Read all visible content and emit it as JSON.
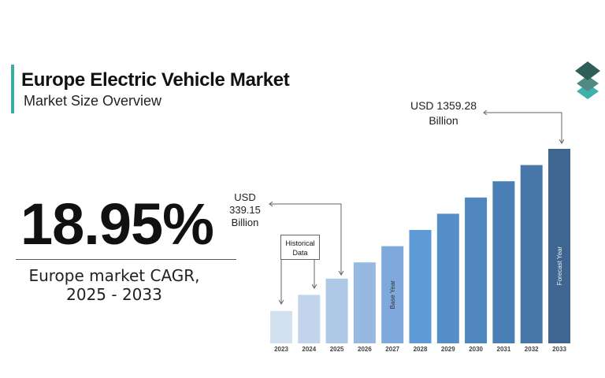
{
  "header": {
    "title": "Europe Electric Vehicle Market",
    "subtitle": "Market Size Overview"
  },
  "logo": {
    "icon": "stacked-layers-logo-icon",
    "colors": [
      "#2f5f5a",
      "#4f8a85",
      "#3fb0aa"
    ]
  },
  "cagr": {
    "value": "18.95%",
    "label_line1": "Europe market CAGR,",
    "label_line2": "2025 - 2033"
  },
  "annotations": {
    "value_2025_line1": "USD",
    "value_2025_line2": "339.15",
    "value_2025_line3": "Billion",
    "value_2033_line1": "USD 1359.28",
    "value_2033_line2": "Billion",
    "historical_line1": "Historical",
    "historical_line2": "Data"
  },
  "chart_data": {
    "type": "bar",
    "title": "",
    "xlabel": "",
    "ylabel": "",
    "categories": [
      "2023",
      "2024",
      "2025",
      "2026",
      "2027",
      "2028",
      "2029",
      "2030",
      "2031",
      "2032",
      "2033"
    ],
    "values": [
      null,
      null,
      339.15,
      null,
      null,
      null,
      null,
      null,
      null,
      null,
      1359.28
    ],
    "unit": "USD Billion",
    "bar_labels": {
      "2027": "Base Year",
      "2033": "Forecast Year"
    },
    "colors": [
      "#d3e0ef",
      "#c2d5ec",
      "#afc8e6",
      "#97b9e0",
      "#7fa9dc",
      "#5e9ad6",
      "#558fc8",
      "#4e86bd",
      "#497fb4",
      "#4677a8",
      "#3e6690"
    ],
    "grid": false,
    "legend": "none"
  }
}
